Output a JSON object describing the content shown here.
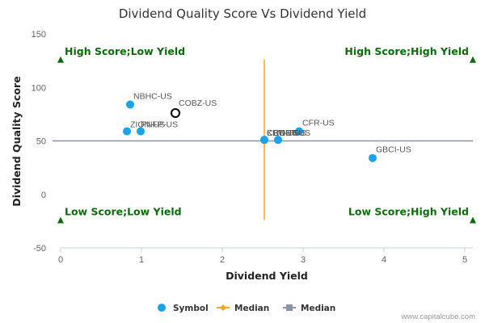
{
  "chart_data": {
    "type": "scatter",
    "title": "Dividend Quality Score Vs Dividend Yield",
    "xlabel": "Dividend Yield",
    "ylabel": "Dividend Quality Score",
    "xlim": [
      0,
      5.1
    ],
    "ylim": [
      -50,
      150
    ],
    "x_ticks": [
      "0",
      "1",
      "2",
      "3",
      "4",
      "5"
    ],
    "y_ticks": [
      "-50",
      "0",
      "50",
      "100",
      "150"
    ],
    "grid": false,
    "legend_position": "bottom",
    "series": [
      {
        "name": "Symbol",
        "color": "#1aa3e8",
        "points": [
          {
            "label": "NBHC-US",
            "x": 0.86,
            "y": 84
          },
          {
            "label": "ZION-US",
            "x": 0.82,
            "y": 59
          },
          {
            "label": "PNFP-US",
            "x": 0.99,
            "y": 59
          },
          {
            "label": "CFR-US",
            "x": 2.95,
            "y": 59
          },
          {
            "label": "KEY-US",
            "x": 2.52,
            "y": 51
          },
          {
            "label": "CBU-US",
            "x": 2.52,
            "y": 51
          },
          {
            "label": "RNST-US",
            "x": 2.69,
            "y": 51
          },
          {
            "label": "BOH-US",
            "x": 2.69,
            "y": 51
          },
          {
            "label": "GBCI-US",
            "x": 3.86,
            "y": 34
          }
        ]
      }
    ],
    "highlight": {
      "label": "COBZ-US",
      "x": 1.42,
      "y": 76,
      "color": "#000000"
    },
    "median_x": {
      "name": "Median",
      "value": 2.52,
      "color": "#f5a623"
    },
    "median_y": {
      "name": "Median",
      "value": 50,
      "color": "#8a94a6"
    },
    "quadrants": [
      {
        "text": "High Score;Low Yield",
        "x": 0,
        "y": 126,
        "align": "start"
      },
      {
        "text": "High Score;High Yield",
        "x": 5.1,
        "y": 126,
        "align": "end"
      },
      {
        "text": "Low Score;Low Yield",
        "x": 0,
        "y": -24,
        "align": "start"
      },
      {
        "text": "Low Score;High Yield",
        "x": 5.1,
        "y": -24,
        "align": "end"
      }
    ],
    "quadrant_color": "#0a6b0a",
    "legend": [
      {
        "text": "Symbol",
        "kind": "dot",
        "color": "#1aa3e8"
      },
      {
        "text": "Median",
        "kind": "line-diamond",
        "color": "#f5a623"
      },
      {
        "text": "Median",
        "kind": "line-square",
        "color": "#8a94a6"
      }
    ]
  },
  "credit": "www.capitalcube.com"
}
